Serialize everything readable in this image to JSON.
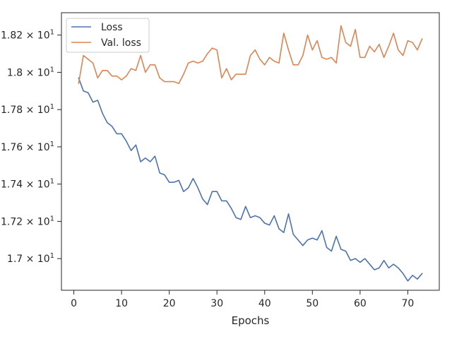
{
  "chart_data": {
    "type": "line",
    "title": "",
    "xlabel": "Epochs",
    "ylabel": "",
    "xlim": [
      -2.6,
      76.6
    ],
    "ylim": [
      16.83,
      18.32
    ],
    "xticks": [
      0,
      10,
      20,
      30,
      40,
      50,
      60,
      70
    ],
    "xtick_labels": [
      "0",
      "10",
      "20",
      "30",
      "40",
      "50",
      "60",
      "70"
    ],
    "yticks": [
      17.0,
      17.2,
      17.4,
      17.6,
      17.8,
      18.0,
      18.2
    ],
    "ytick_labels": [
      {
        "mantissa": "1.7",
        "exp": "1"
      },
      {
        "mantissa": "1.72",
        "exp": "1"
      },
      {
        "mantissa": "1.74",
        "exp": "1"
      },
      {
        "mantissa": "1.76",
        "exp": "1"
      },
      {
        "mantissa": "1.78",
        "exp": "1"
      },
      {
        "mantissa": "1.8",
        "exp": "1"
      },
      {
        "mantissa": "1.82",
        "exp": "1"
      }
    ],
    "grid": false,
    "legend_position": "upper-left",
    "x": [
      1,
      2,
      3,
      4,
      5,
      6,
      7,
      8,
      9,
      10,
      11,
      12,
      13,
      14,
      15,
      16,
      17,
      18,
      19,
      20,
      21,
      22,
      23,
      24,
      25,
      26,
      27,
      28,
      29,
      30,
      31,
      32,
      33,
      34,
      35,
      36,
      37,
      38,
      39,
      40,
      41,
      42,
      43,
      44,
      45,
      46,
      47,
      48,
      49,
      50,
      51,
      52,
      53,
      54,
      55,
      56,
      57,
      58,
      59,
      60,
      61,
      62,
      63,
      64,
      65,
      66,
      67,
      68,
      69,
      70,
      71,
      72,
      73
    ],
    "series": [
      {
        "name": "Loss",
        "color": "#4c72b0",
        "values": [
          17.97,
          17.9,
          17.89,
          17.84,
          17.85,
          17.78,
          17.73,
          17.71,
          17.67,
          17.67,
          17.63,
          17.58,
          17.61,
          17.52,
          17.54,
          17.52,
          17.55,
          17.46,
          17.45,
          17.41,
          17.41,
          17.42,
          17.36,
          17.38,
          17.43,
          17.38,
          17.32,
          17.29,
          17.36,
          17.36,
          17.31,
          17.31,
          17.27,
          17.22,
          17.21,
          17.28,
          17.22,
          17.23,
          17.22,
          17.19,
          17.18,
          17.23,
          17.16,
          17.14,
          17.24,
          17.13,
          17.1,
          17.07,
          17.1,
          17.11,
          17.1,
          17.15,
          17.06,
          17.04,
          17.12,
          17.05,
          17.04,
          16.99,
          17.0,
          16.98,
          17.0,
          16.97,
          16.94,
          16.95,
          16.99,
          16.95,
          16.97,
          16.95,
          16.92,
          16.88,
          16.91,
          16.89,
          16.92
        ]
      },
      {
        "name": "Val. loss",
        "color": "#dd8452",
        "values": [
          17.94,
          18.09,
          18.07,
          18.05,
          17.97,
          18.01,
          18.01,
          17.98,
          17.98,
          17.96,
          17.98,
          18.02,
          18.01,
          18.09,
          18.0,
          18.04,
          18.04,
          17.97,
          17.95,
          17.95,
          17.95,
          17.94,
          17.99,
          18.05,
          18.06,
          18.05,
          18.06,
          18.1,
          18.13,
          18.12,
          17.97,
          18.02,
          17.96,
          17.99,
          17.99,
          17.99,
          18.09,
          18.12,
          18.07,
          18.04,
          18.08,
          18.06,
          18.05,
          18.21,
          18.12,
          18.04,
          18.04,
          18.09,
          18.2,
          18.12,
          18.17,
          18.08,
          18.07,
          18.08,
          18.05,
          18.25,
          18.16,
          18.14,
          18.23,
          18.08,
          18.08,
          18.14,
          18.11,
          18.15,
          18.08,
          18.14,
          18.21,
          18.12,
          18.09,
          18.17,
          18.16,
          18.12,
          18.18
        ]
      }
    ]
  }
}
